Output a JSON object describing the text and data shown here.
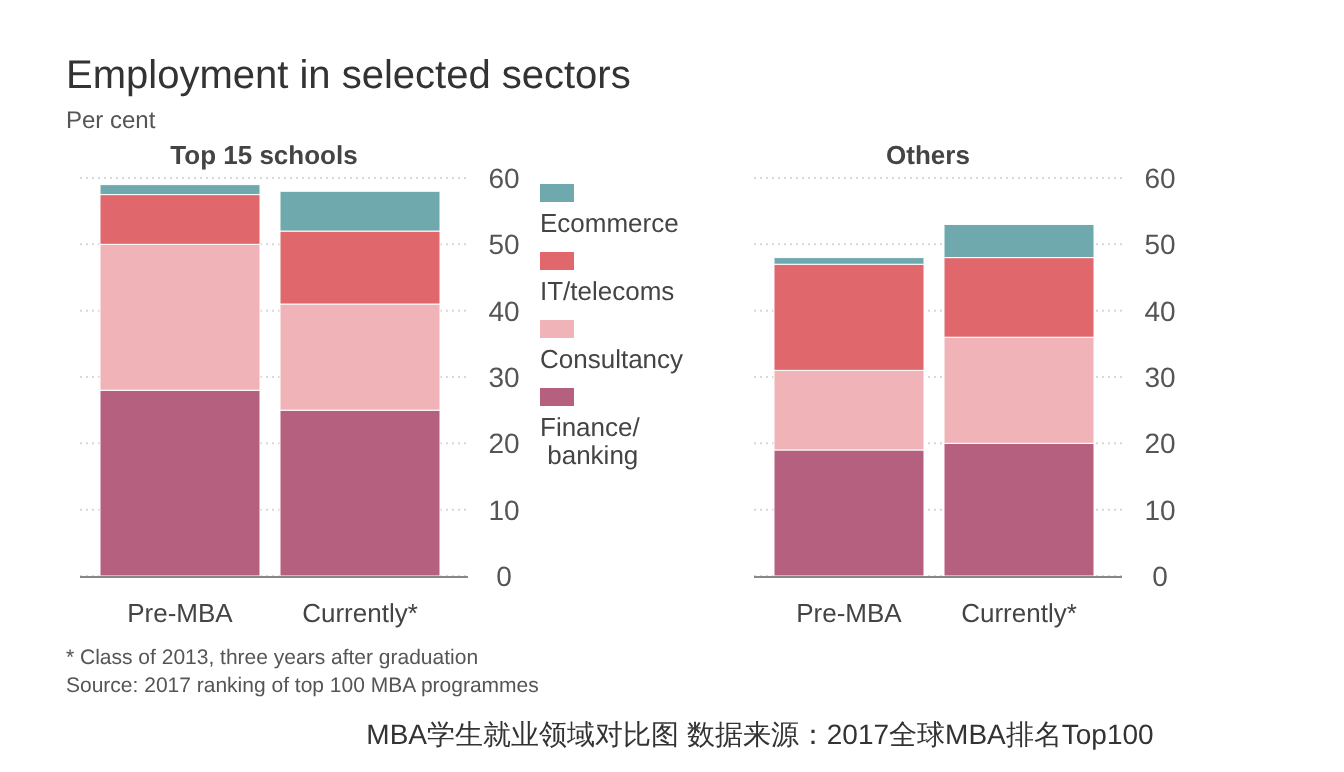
{
  "chart_data": [
    {
      "type": "bar",
      "title": "Employment in selected sectors",
      "subtitle": "Top 15 schools",
      "ylabel": "Per cent",
      "categories": [
        "Pre-MBA",
        "Currently*"
      ],
      "stacked": true,
      "ylim": [
        0,
        60
      ],
      "yticks": [
        0,
        10,
        20,
        30,
        40,
        50,
        60
      ],
      "grid": "y",
      "legend": "right",
      "series": [
        {
          "name": "Finance/\nbanking",
          "color": "#b5607f",
          "values": [
            28,
            25
          ]
        },
        {
          "name": "Consultancy",
          "color": "#f0b3b8",
          "values": [
            22,
            16
          ]
        },
        {
          "name": "IT/telecoms",
          "color": "#e0676b",
          "values": [
            7.5,
            11
          ]
        },
        {
          "name": "Ecommerce",
          "color": "#6fa8ad",
          "values": [
            1.5,
            6
          ]
        }
      ],
      "annotations": [
        "* Class of 2013, three years after graduation",
        "Source: 2017 ranking of top 100 MBA programmes",
        "MBA学生就业领域对比图 数据来源：2017全球MBA排名Top100"
      ]
    },
    {
      "type": "bar",
      "subtitle": "Others",
      "categories": [
        "Pre-MBA",
        "Currently*"
      ],
      "stacked": true,
      "ylim": [
        0,
        60
      ],
      "yticks": [
        0,
        10,
        20,
        30,
        40,
        50,
        60
      ],
      "grid": "y",
      "series": [
        {
          "color": "#b5607f",
          "values": [
            19,
            20
          ]
        },
        {
          "color": "#f0b3b8",
          "values": [
            12,
            16
          ]
        },
        {
          "color": "#e0676b",
          "values": [
            16,
            12
          ]
        },
        {
          "color": "#6fa8ad",
          "values": [
            1,
            5
          ]
        }
      ]
    }
  ]
}
